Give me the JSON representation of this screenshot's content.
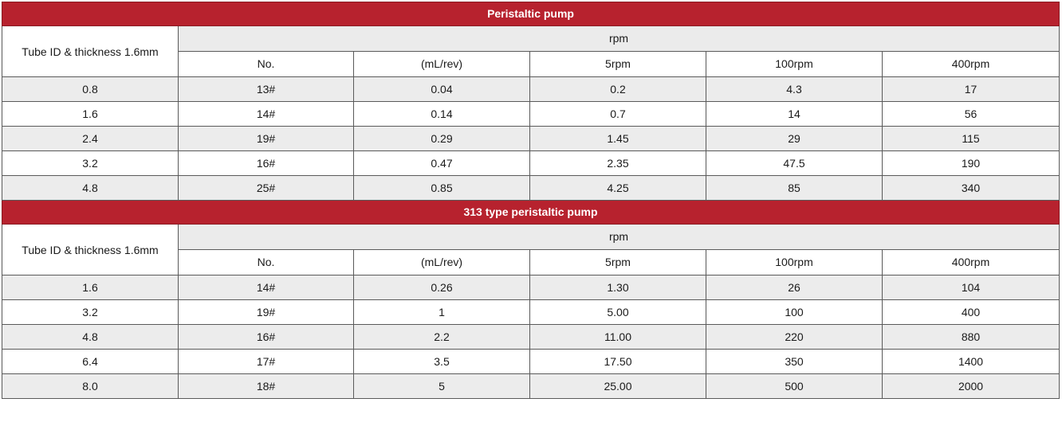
{
  "tables": [
    {
      "title": "Peristaltic pump",
      "tube_label": "Tube ID & thickness 1.6mm",
      "group_header": "rpm",
      "columns": [
        "No.",
        "(mL/rev)",
        "5rpm",
        "100rpm",
        "400rpm"
      ],
      "rows": [
        [
          "0.8",
          "13#",
          "0.04",
          "0.2",
          "4.3",
          "17"
        ],
        [
          "1.6",
          "14#",
          "0.14",
          "0.7",
          "14",
          "56"
        ],
        [
          "2.4",
          "19#",
          "0.29",
          "1.45",
          "29",
          "115"
        ],
        [
          "3.2",
          "16#",
          "0.47",
          "2.35",
          "47.5",
          "190"
        ],
        [
          "4.8",
          "25#",
          "0.85",
          "4.25",
          "85",
          "340"
        ]
      ]
    },
    {
      "title": "313 type peristaltic pump",
      "tube_label": "Tube ID & thickness 1.6mm",
      "group_header": "rpm",
      "columns": [
        "No.",
        "(mL/rev)",
        "5rpm",
        "100rpm",
        "400rpm"
      ],
      "rows": [
        [
          "1.6",
          "14#",
          "0.26",
          "1.30",
          "26",
          "104"
        ],
        [
          "3.2",
          "19#",
          "1",
          "5.00",
          "100",
          "400"
        ],
        [
          "4.8",
          "16#",
          "2.2",
          "11.00",
          "220",
          "880"
        ],
        [
          "6.4",
          "17#",
          "3.5",
          "17.50",
          "350",
          "1400"
        ],
        [
          "8.0",
          "18#",
          "5",
          "25.00",
          "500",
          "2000"
        ]
      ]
    }
  ],
  "colors": {
    "title_bar": "#b7222e",
    "alt_row": "#ececec",
    "rpm_header": "#ebebeb"
  }
}
